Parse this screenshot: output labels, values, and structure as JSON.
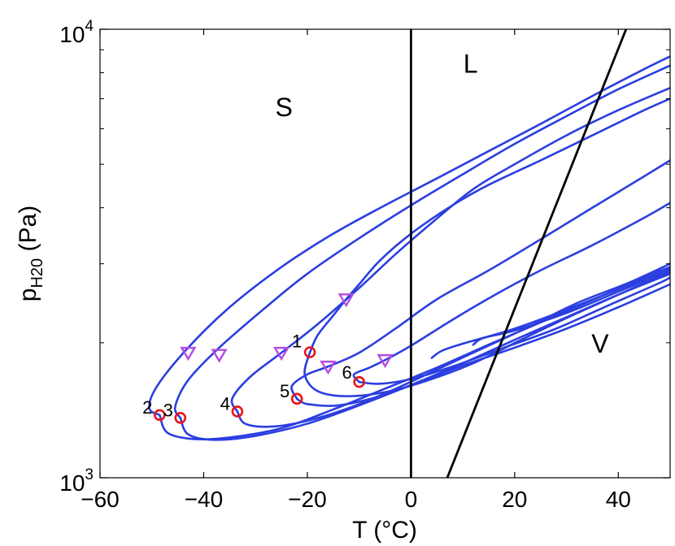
{
  "chart_data": {
    "type": "line",
    "title": "",
    "xlabel": "T (°C)",
    "ylabel": {
      "main": "p",
      "subscript": "H20",
      "unit": "(Pa)"
    },
    "xlim": [
      -60,
      50
    ],
    "ylim": [
      1000,
      10000
    ],
    "yscale": "log",
    "x_ticks": [
      -60,
      -40,
      -20,
      0,
      20,
      40
    ],
    "x_tick_labels": [
      "−60",
      "−40",
      "−20",
      "0",
      "20",
      "40"
    ],
    "y_ticks": [
      {
        "value": 1000,
        "base": "10",
        "exp": "3"
      },
      {
        "value": 10000,
        "base": "10",
        "exp": "4"
      }
    ],
    "colors": {
      "curve": "#2b3fe0",
      "boundary": "#000000",
      "circle": "#e8141a",
      "triangle": "#b54be0"
    },
    "region_labels": [
      {
        "text": "S",
        "x": -24.5,
        "y": 6400
      },
      {
        "text": "L",
        "x": 11.5,
        "y": 8000
      },
      {
        "text": "V",
        "x": 36.5,
        "y": 1900
      }
    ],
    "phase_boundaries": [
      {
        "name": "solid-liquid",
        "points": [
          [
            0,
            1000
          ],
          [
            0,
            10000
          ]
        ]
      },
      {
        "name": "liquid-vapor",
        "points": [
          [
            7,
            1000
          ],
          [
            41.5,
            10000
          ]
        ]
      }
    ],
    "circle_markers": [
      {
        "label": "1",
        "x": -19.5,
        "y": 1905
      },
      {
        "label": "2",
        "x": -48.5,
        "y": 1380
      },
      {
        "label": "3",
        "x": -44.5,
        "y": 1360
      },
      {
        "label": "4",
        "x": -33.5,
        "y": 1405
      },
      {
        "label": "5",
        "x": -22.0,
        "y": 1500
      },
      {
        "label": "6",
        "x": -10.0,
        "y": 1635
      }
    ],
    "triangle_markers": [
      {
        "x": -43.0,
        "y": 1900
      },
      {
        "x": -37.0,
        "y": 1880
      },
      {
        "x": -25.0,
        "y": 1900
      },
      {
        "x": -16.0,
        "y": 1770
      },
      {
        "x": -12.5,
        "y": 2500
      },
      {
        "x": -5.0,
        "y": 1830
      }
    ],
    "series": [
      {
        "name": "trajectory-a",
        "points": [
          [
            -48.5,
            1380
          ],
          [
            -50.5,
            1430
          ],
          [
            -49,
            1600
          ],
          [
            -43,
            1950
          ],
          [
            -35,
            2400
          ],
          [
            -25,
            2950
          ],
          [
            -15,
            3500
          ],
          [
            -5,
            4050
          ],
          [
            5,
            4650
          ],
          [
            15,
            5350
          ],
          [
            25,
            6150
          ],
          [
            35,
            7100
          ],
          [
            45,
            8150
          ],
          [
            50,
            8700
          ]
        ]
      },
      {
        "name": "trajectory-b",
        "points": [
          [
            -48.5,
            1380
          ],
          [
            -47,
            1260
          ],
          [
            -42,
            1220
          ],
          [
            -35,
            1230
          ],
          [
            -25,
            1290
          ],
          [
            -15,
            1420
          ],
          [
            -5,
            1580
          ],
          [
            5,
            1760
          ],
          [
            15,
            1980
          ],
          [
            25,
            2220
          ],
          [
            35,
            2490
          ],
          [
            45,
            2800
          ],
          [
            50,
            2950
          ]
        ]
      },
      {
        "name": "trajectory-c",
        "points": [
          [
            -44.5,
            1360
          ],
          [
            -45.5,
            1440
          ],
          [
            -43,
            1650
          ],
          [
            -37,
            1950
          ],
          [
            -28,
            2400
          ],
          [
            -20,
            2850
          ],
          [
            -10,
            3420
          ],
          [
            0,
            4050
          ],
          [
            10,
            4750
          ],
          [
            20,
            5550
          ],
          [
            30,
            6400
          ],
          [
            40,
            7350
          ],
          [
            50,
            8300
          ]
        ]
      },
      {
        "name": "trajectory-d",
        "points": [
          [
            -44.5,
            1360
          ],
          [
            -43,
            1250
          ],
          [
            -38,
            1215
          ],
          [
            -30,
            1240
          ],
          [
            -20,
            1320
          ],
          [
            -10,
            1450
          ],
          [
            0,
            1610
          ],
          [
            10,
            1800
          ],
          [
            20,
            2030
          ],
          [
            30,
            2280
          ],
          [
            40,
            2560
          ],
          [
            50,
            2850
          ]
        ]
      },
      {
        "name": "trajectory-e",
        "points": [
          [
            -33.5,
            1405
          ],
          [
            -34.5,
            1500
          ],
          [
            -31,
            1680
          ],
          [
            -25,
            1900
          ],
          [
            -18,
            2200
          ],
          [
            -10,
            2650
          ],
          [
            -3,
            3150
          ],
          [
            4,
            3700
          ],
          [
            12,
            4400
          ],
          [
            20,
            5000
          ],
          [
            30,
            5800
          ],
          [
            40,
            6600
          ],
          [
            50,
            7400
          ]
        ]
      },
      {
        "name": "trajectory-f",
        "points": [
          [
            -33.5,
            1405
          ],
          [
            -32,
            1320
          ],
          [
            -27,
            1300
          ],
          [
            -20,
            1340
          ],
          [
            -12,
            1430
          ],
          [
            -4,
            1560
          ],
          [
            4,
            1720
          ],
          [
            12,
            1900
          ],
          [
            22,
            2150
          ],
          [
            32,
            2450
          ],
          [
            42,
            2720
          ],
          [
            50,
            3000
          ]
        ]
      },
      {
        "name": "trajectory-g",
        "points": [
          [
            -19.5,
            1905
          ],
          [
            -18,
            2080
          ],
          [
            -15,
            2300
          ],
          [
            -12.5,
            2500
          ],
          [
            -10,
            2700
          ],
          [
            -6,
            3050
          ],
          [
            0,
            3500
          ],
          [
            8,
            4050
          ],
          [
            15,
            4500
          ],
          [
            25,
            5100
          ],
          [
            35,
            5800
          ],
          [
            45,
            6600
          ],
          [
            50,
            7000
          ]
        ]
      },
      {
        "name": "trajectory-h",
        "points": [
          [
            -19.5,
            1905
          ],
          [
            -20.5,
            1700
          ],
          [
            -18,
            1560
          ],
          [
            -12,
            1520
          ],
          [
            -4,
            1560
          ],
          [
            4,
            1660
          ],
          [
            12,
            1800
          ],
          [
            22,
            2050
          ],
          [
            30,
            2270
          ],
          [
            40,
            2560
          ],
          [
            50,
            2880
          ]
        ]
      },
      {
        "name": "trajectory-i",
        "points": [
          [
            -22,
            1500
          ],
          [
            -23,
            1600
          ],
          [
            -20,
            1700
          ],
          [
            -16,
            1770
          ],
          [
            -10,
            1900
          ],
          [
            -3,
            2150
          ],
          [
            5,
            2500
          ],
          [
            15,
            2900
          ],
          [
            25,
            3400
          ],
          [
            35,
            4000
          ],
          [
            45,
            4700
          ],
          [
            50,
            5100
          ]
        ]
      },
      {
        "name": "trajectory-j",
        "points": [
          [
            -22,
            1500
          ],
          [
            -20,
            1460
          ],
          [
            -14,
            1450
          ],
          [
            -6,
            1520
          ],
          [
            2,
            1640
          ],
          [
            10,
            1780
          ],
          [
            20,
            1950
          ],
          [
            30,
            2150
          ],
          [
            40,
            2400
          ],
          [
            50,
            2700
          ]
        ]
      },
      {
        "name": "trajectory-k",
        "points": [
          [
            -10,
            1635
          ],
          [
            -11,
            1700
          ],
          [
            -8,
            1760
          ],
          [
            -5,
            1830
          ],
          [
            0,
            1970
          ],
          [
            8,
            2250
          ],
          [
            16,
            2550
          ],
          [
            25,
            2900
          ],
          [
            35,
            3300
          ],
          [
            45,
            3800
          ],
          [
            50,
            4100
          ]
        ]
      },
      {
        "name": "trajectory-l",
        "points": [
          [
            -10,
            1635
          ],
          [
            -6,
            1620
          ],
          [
            0,
            1660
          ],
          [
            8,
            1770
          ],
          [
            18,
            1950
          ],
          [
            28,
            2150
          ],
          [
            38,
            2420
          ],
          [
            48,
            2720
          ],
          [
            50,
            2800
          ]
        ]
      },
      {
        "name": "trajectory-m",
        "points": [
          [
            4,
            1850
          ],
          [
            6,
            1920
          ],
          [
            10,
            1990
          ],
          [
            20,
            2150
          ],
          [
            30,
            2370
          ],
          [
            40,
            2630
          ],
          [
            50,
            2920
          ]
        ]
      },
      {
        "name": "trajectory-n",
        "points": [
          [
            12,
            1980
          ],
          [
            14,
            2050
          ],
          [
            20,
            2130
          ],
          [
            30,
            2330
          ],
          [
            40,
            2600
          ],
          [
            50,
            2900
          ]
        ]
      }
    ]
  }
}
